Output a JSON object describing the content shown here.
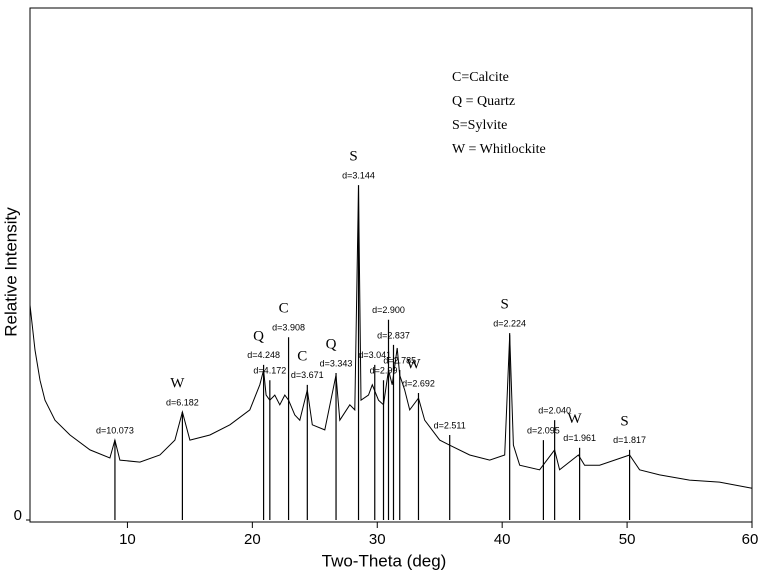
{
  "chart_data": {
    "type": "xrd",
    "x_label": "Two-Theta (deg)",
    "y_label": "Relative Intensity",
    "xlim": [
      2.2,
      60
    ],
    "ylim": [
      0,
      100
    ],
    "xticks": [
      10,
      20,
      30,
      40,
      50,
      60
    ],
    "yticks": [
      0
    ],
    "color": "#000000",
    "legend_notes": [
      "C=Calcite",
      "Q = Quartz",
      "S=Sylvite",
      "W = Whitlockite"
    ],
    "trace": {
      "x": [
        2.2,
        2.6,
        3.0,
        3.4,
        4.2,
        5.4,
        7.0,
        8.6,
        9.0,
        9.4,
        11.0,
        12.6,
        13.8,
        14.4,
        15.0,
        16.6,
        18.2,
        19.8,
        20.6,
        20.9,
        21.1,
        21.4,
        21.8,
        22.2,
        22.6,
        22.9,
        23.4,
        23.8,
        24.4,
        24.8,
        25.8,
        26.7,
        27.0,
        27.8,
        28.2,
        28.5,
        28.7,
        29.3,
        29.6,
        30.1,
        30.5,
        30.9,
        31.2,
        31.6,
        31.8,
        32.2,
        32.6,
        33.3,
        33.8,
        35.0,
        35.8,
        37.4,
        39.0,
        40.2,
        40.6,
        40.9,
        41.4,
        43.0,
        44.2,
        44.6,
        46.1,
        46.6,
        47.8,
        50.2,
        51.0,
        52.6,
        55.0,
        57.4,
        60.0
      ],
      "y": [
        42.0,
        33.2,
        27.3,
        23.4,
        19.5,
        16.6,
        13.7,
        12.1,
        15.6,
        11.7,
        11.3,
        12.7,
        15.6,
        21.1,
        15.6,
        16.6,
        18.6,
        21.5,
        26.4,
        29.3,
        24.4,
        23.4,
        24.4,
        22.5,
        24.4,
        23.4,
        20.5,
        19.5,
        25.4,
        18.6,
        17.6,
        28.3,
        19.5,
        22.5,
        21.5,
        65.0,
        23.4,
        24.4,
        26.4,
        23.4,
        22.5,
        29.3,
        26.4,
        33.6,
        28.3,
        25.4,
        21.5,
        23.8,
        19.5,
        15.6,
        14.6,
        12.7,
        11.7,
        12.7,
        36.1,
        14.6,
        10.7,
        9.8,
        13.7,
        9.8,
        12.7,
        10.7,
        10.7,
        12.7,
        9.8,
        8.8,
        7.8,
        7.4,
        6.2
      ]
    },
    "peaks": [
      {
        "label": "d=10.073",
        "x": 9.0,
        "height": 15.6
      },
      {
        "label": "d=6.182",
        "x": 14.4,
        "height": 21.1,
        "phase": "W"
      },
      {
        "label": "d=4.248",
        "x": 20.9,
        "height": 30.3,
        "phase": "Q"
      },
      {
        "label": "d=4.172",
        "x": 21.4,
        "height": 27.3
      },
      {
        "label": "d=3.908",
        "x": 22.9,
        "height": 35.7,
        "phase": "C"
      },
      {
        "label": "d=3.671",
        "x": 24.4,
        "height": 26.4,
        "phase": "C"
      },
      {
        "label": "d=3.343",
        "x": 26.7,
        "height": 28.7,
        "phase": "Q"
      },
      {
        "label": "d=3.144",
        "x": 28.5,
        "height": 65.4,
        "phase": "S"
      },
      {
        "label": "d=3.041",
        "x": 29.8,
        "height": 30.3
      },
      {
        "label": "d=2.99",
        "x": 30.5,
        "height": 27.3
      },
      {
        "label": "d=2.900",
        "x": 30.9,
        "height": 39.1
      },
      {
        "label": "d=2.837",
        "x": 31.3,
        "height": 34.2
      },
      {
        "label": "d=2.785",
        "x": 31.8,
        "height": 29.3
      },
      {
        "label": "d=2.692",
        "x": 33.3,
        "height": 24.8,
        "phase": "W"
      },
      {
        "label": "d=2.511",
        "x": 35.8,
        "height": 16.6
      },
      {
        "label": "d=2.224",
        "x": 40.6,
        "height": 36.5,
        "phase": "S"
      },
      {
        "label": "d=2.095",
        "x": 43.3,
        "height": 15.6
      },
      {
        "label": "d=2.040",
        "x": 44.2,
        "height": 19.5
      },
      {
        "label": "d=1.961",
        "x": 46.2,
        "height": 14.1,
        "phase": "W"
      },
      {
        "label": "d=1.817",
        "x": 50.2,
        "height": 13.7,
        "phase": "S"
      }
    ]
  }
}
